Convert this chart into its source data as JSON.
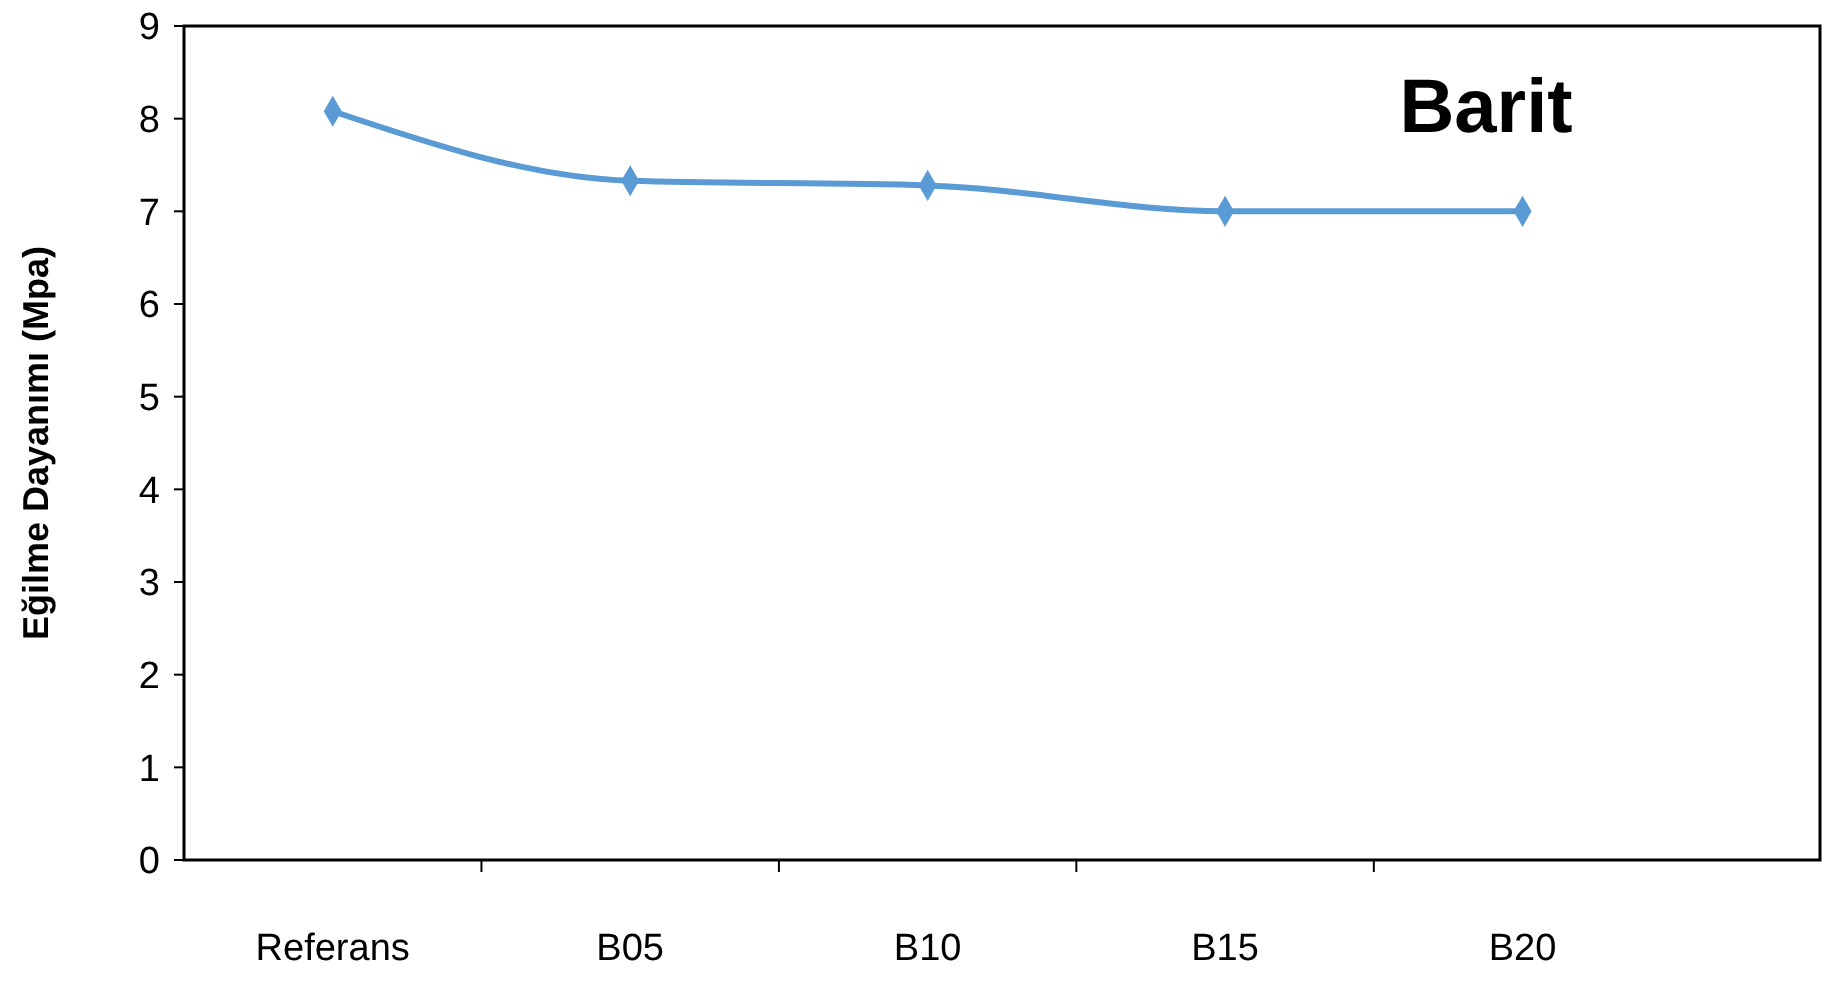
{
  "chart_data": {
    "type": "line",
    "title": "Barit",
    "ylabel": "Eğilme  Dayanımı (Mpa)",
    "categories": [
      "Referans",
      "B05",
      "B10",
      "B15",
      "B20"
    ],
    "series": [
      {
        "color": "#5b9bd5",
        "values": [
          8.08,
          7.33,
          7.28,
          7.0,
          7.0
        ]
      }
    ],
    "ylim": [
      0,
      9
    ],
    "yticks": [
      0,
      1,
      2,
      3,
      4,
      5,
      6,
      7,
      8,
      9
    ],
    "grid": false,
    "marker": "diamond",
    "line_style": "solid"
  }
}
